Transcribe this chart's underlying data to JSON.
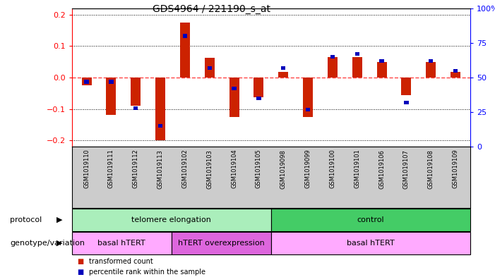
{
  "title": "GDS4964 / 221190_s_at",
  "samples": [
    "GSM1019110",
    "GSM1019111",
    "GSM1019112",
    "GSM1019113",
    "GSM1019102",
    "GSM1019103",
    "GSM1019104",
    "GSM1019105",
    "GSM1019098",
    "GSM1019099",
    "GSM1019100",
    "GSM1019101",
    "GSM1019106",
    "GSM1019107",
    "GSM1019108",
    "GSM1019109"
  ],
  "red_bars": [
    -0.025,
    -0.118,
    -0.09,
    -0.2,
    0.175,
    0.063,
    -0.125,
    -0.063,
    0.018,
    -0.125,
    0.065,
    0.065,
    0.05,
    -0.055,
    0.05,
    0.018
  ],
  "blue_dots": [
    47,
    47,
    28,
    15,
    80,
    57,
    42,
    35,
    57,
    27,
    65,
    67,
    62,
    32,
    62,
    55
  ],
  "ylim_left": [
    -0.22,
    0.22
  ],
  "ylim_right": [
    0,
    100
  ],
  "yticks_left": [
    -0.2,
    -0.1,
    0.0,
    0.1,
    0.2
  ],
  "yticks_right": [
    0,
    25,
    50,
    75,
    100
  ],
  "ytick_labels_right": [
    "0",
    "25",
    "50",
    "75",
    "100%"
  ],
  "protocol_groups": [
    {
      "label": "telomere elongation",
      "start": 0,
      "end": 8,
      "color": "#AAEEBB"
    },
    {
      "label": "control",
      "start": 8,
      "end": 16,
      "color": "#44CC66"
    }
  ],
  "genotype_groups": [
    {
      "label": "basal hTERT",
      "start": 0,
      "end": 4,
      "color": "#FFAAFF"
    },
    {
      "label": "hTERT overexpression",
      "start": 4,
      "end": 8,
      "color": "#DD66DD"
    },
    {
      "label": "basal hTERT",
      "start": 8,
      "end": 16,
      "color": "#FFAAFF"
    }
  ],
  "bar_color": "#CC2200",
  "dot_color": "#0000BB",
  "zero_line_color": "#FF4444",
  "bg_color": "#FFFFFF",
  "plot_bg": "#FFFFFF",
  "label_protocol": "protocol",
  "label_genotype": "genotype/variation",
  "legend_red": "transformed count",
  "legend_blue": "percentile rank within the sample",
  "sample_label_bg": "#CCCCCC"
}
